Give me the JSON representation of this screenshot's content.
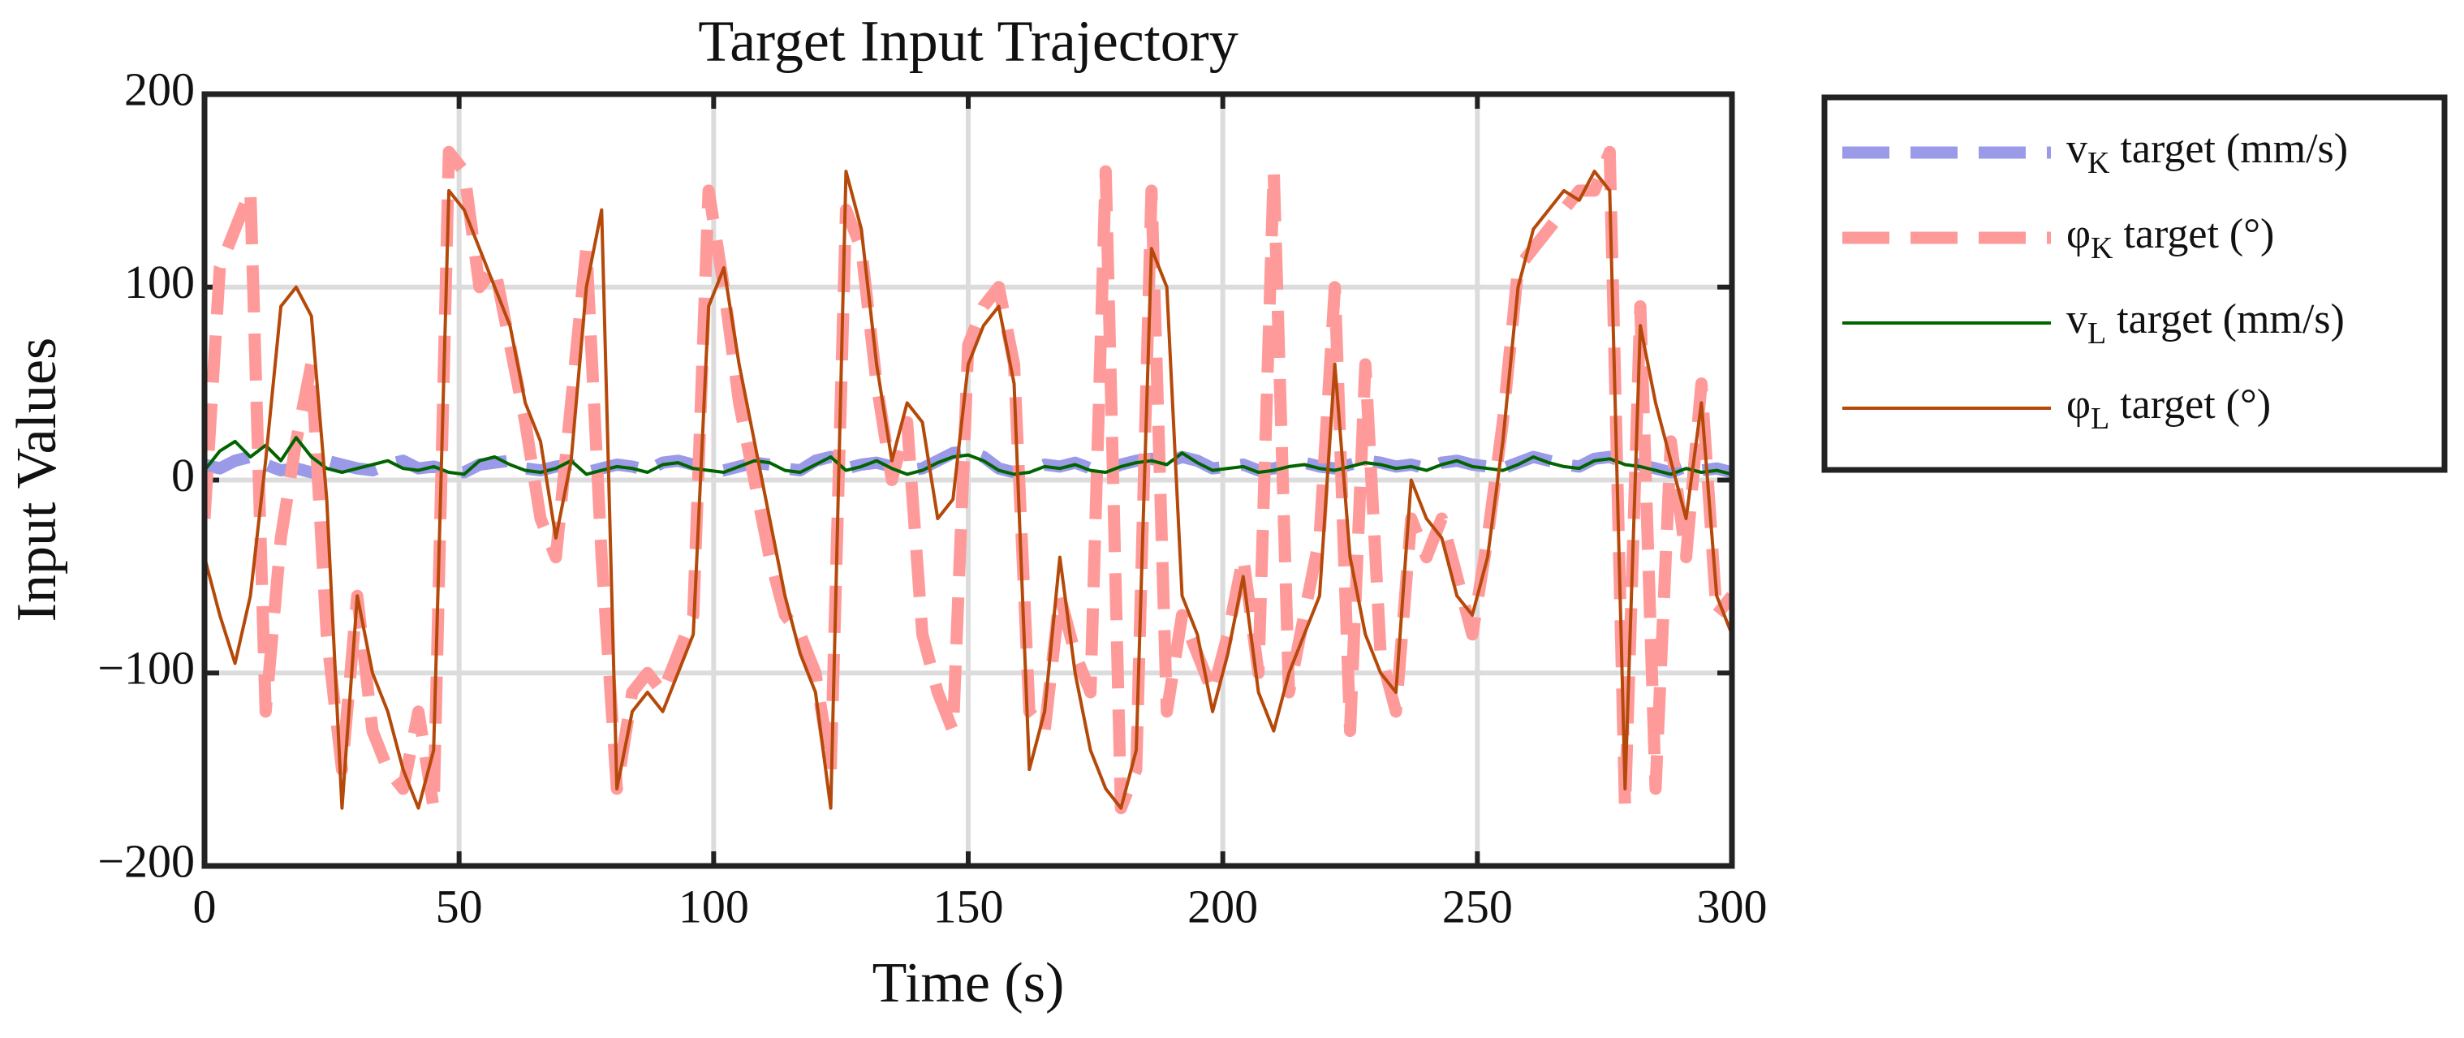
{
  "chart_data": {
    "type": "line",
    "title": "Target Input Trajectory",
    "xlabel": "Time (s)",
    "ylabel": "Input Values",
    "x": [
      0,
      3,
      6,
      9,
      12,
      15,
      18,
      21,
      24,
      27,
      30,
      33,
      36,
      39,
      42,
      45,
      48,
      51,
      54,
      57,
      60,
      63,
      66,
      69,
      72,
      75,
      78,
      81,
      84,
      87,
      90,
      93,
      96,
      99,
      102,
      105,
      108,
      111,
      114,
      117,
      120,
      123,
      126,
      129,
      132,
      135,
      138,
      141,
      144,
      147,
      150,
      153,
      156,
      159,
      162,
      165,
      168,
      171,
      174,
      177,
      180,
      183,
      186,
      189,
      192,
      195,
      198,
      201,
      204,
      207,
      210,
      213,
      216,
      219,
      222,
      225,
      228,
      231,
      234,
      237,
      240,
      243,
      246,
      249,
      252,
      255,
      258,
      261,
      264,
      267,
      270,
      273,
      276,
      279,
      282,
      285,
      288,
      291,
      294,
      297,
      300
    ],
    "series": [
      {
        "name": "vK target (mm/s)",
        "color": "#9a9ae8",
        "linestyle": "dashed",
        "values": [
          8,
          6,
          10,
          12,
          8,
          5,
          6,
          4,
          10,
          8,
          6,
          5,
          8,
          10,
          6,
          7,
          5,
          4,
          8,
          9,
          10,
          6,
          5,
          7,
          8,
          4,
          6,
          8,
          7,
          5,
          9,
          10,
          8,
          6,
          5,
          7,
          9,
          8,
          6,
          5,
          10,
          12,
          6,
          8,
          9,
          7,
          5,
          6,
          10,
          14,
          15,
          12,
          6,
          4,
          5,
          8,
          7,
          9,
          6,
          5,
          8,
          10,
          11,
          9,
          12,
          10,
          6,
          7,
          8,
          5,
          6,
          8,
          9,
          7,
          6,
          8,
          10,
          9,
          7,
          8,
          6,
          9,
          10,
          8,
          7,
          6,
          9,
          12,
          10,
          8,
          7,
          11,
          12,
          9,
          8,
          6,
          4,
          7,
          5,
          6,
          4
        ]
      },
      {
        "name": "φK target (°)",
        "color": "#ff9a9a",
        "linestyle": "dashed",
        "values": [
          -20,
          110,
          130,
          150,
          -120,
          -30,
          20,
          60,
          -80,
          -150,
          -60,
          -130,
          -150,
          -160,
          -120,
          -170,
          170,
          160,
          100,
          110,
          70,
          30,
          -20,
          -40,
          40,
          120,
          -40,
          -160,
          -110,
          -100,
          -110,
          -90,
          -70,
          150,
          100,
          40,
          0,
          -40,
          -70,
          -80,
          -100,
          -150,
          140,
          120,
          50,
          0,
          30,
          -80,
          -110,
          -130,
          70,
          90,
          100,
          60,
          -120,
          -130,
          -60,
          -90,
          -110,
          160,
          -170,
          -150,
          150,
          -120,
          -70,
          -90,
          -110,
          -80,
          -40,
          -100,
          160,
          -110,
          -70,
          -30,
          100,
          -130,
          60,
          -90,
          -120,
          -20,
          -40,
          -20,
          -50,
          -80,
          -30,
          30,
          110,
          120,
          130,
          140,
          150,
          150,
          170,
          -170,
          90,
          -160,
          20,
          -40,
          50,
          -70,
          -60
        ]
      },
      {
        "name": "vL target (mm/s)",
        "color": "#006400",
        "linestyle": "solid",
        "values": [
          5,
          15,
          20,
          12,
          18,
          10,
          22,
          12,
          6,
          4,
          6,
          8,
          10,
          6,
          5,
          7,
          4,
          3,
          10,
          12,
          8,
          5,
          4,
          6,
          10,
          3,
          5,
          7,
          6,
          4,
          8,
          9,
          6,
          5,
          4,
          7,
          10,
          9,
          5,
          4,
          8,
          12,
          5,
          7,
          10,
          6,
          3,
          5,
          9,
          12,
          13,
          10,
          5,
          3,
          4,
          7,
          6,
          8,
          5,
          4,
          7,
          9,
          10,
          8,
          14,
          9,
          5,
          6,
          7,
          4,
          5,
          7,
          8,
          6,
          5,
          7,
          9,
          8,
          6,
          7,
          5,
          8,
          10,
          7,
          6,
          5,
          8,
          12,
          9,
          7,
          6,
          10,
          11,
          8,
          7,
          5,
          3,
          6,
          4,
          5,
          3
        ]
      },
      {
        "name": "φL target (°)",
        "color": "#b5490a",
        "linestyle": "solid",
        "values": [
          -40,
          -70,
          -95,
          -60,
          10,
          90,
          100,
          85,
          -10,
          -170,
          -60,
          -100,
          -120,
          -150,
          -170,
          -140,
          150,
          140,
          120,
          100,
          80,
          40,
          20,
          -30,
          10,
          100,
          140,
          -160,
          -120,
          -110,
          -120,
          -100,
          -80,
          90,
          110,
          60,
          20,
          -20,
          -60,
          -90,
          -110,
          -170,
          160,
          130,
          60,
          10,
          40,
          30,
          -20,
          -10,
          60,
          80,
          90,
          50,
          -150,
          -120,
          -40,
          -100,
          -140,
          -160,
          -170,
          -140,
          120,
          100,
          -60,
          -80,
          -120,
          -90,
          -50,
          -110,
          -130,
          -100,
          -80,
          -60,
          60,
          -40,
          -80,
          -100,
          -110,
          0,
          -20,
          -30,
          -60,
          -70,
          -40,
          20,
          100,
          130,
          140,
          150,
          145,
          160,
          150,
          -160,
          80,
          40,
          10,
          -20,
          40,
          -60,
          -80
        ]
      }
    ],
    "xlim": [
      0,
      300
    ],
    "xticks": [
      0,
      50,
      100,
      150,
      200,
      250,
      300
    ],
    "ylim": [
      -200,
      200
    ],
    "yticks": [
      {
        "value": -200,
        "label": "−200"
      },
      {
        "value": -100,
        "label": "−100"
      },
      0,
      100,
      200
    ],
    "grid": true,
    "legend": "outside right"
  }
}
